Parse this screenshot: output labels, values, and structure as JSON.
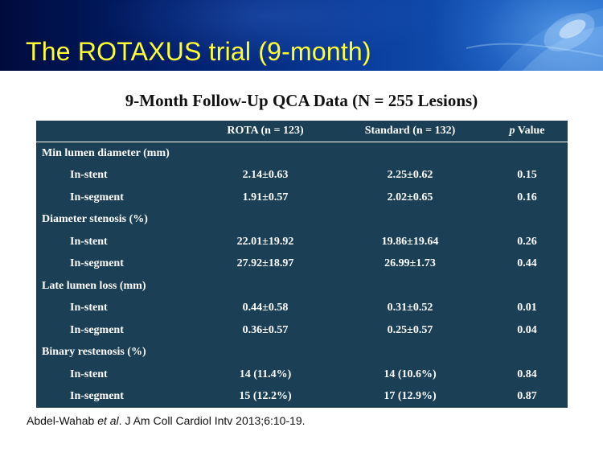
{
  "slide": {
    "title": "The ROTAXUS trial (9-month)",
    "table_title": "9-Month Follow-Up QCA Data (N = 255 Lesions)"
  },
  "table": {
    "headers": {
      "label": "",
      "rota": "ROTA (n = 123)",
      "standard": "Standard (n = 132)",
      "p_italic": "p",
      "p_rest": " Value"
    },
    "groups": [
      {
        "label": "Min lumen diameter (mm)",
        "rows": [
          {
            "label": "In-stent",
            "rota": "2.14±0.63",
            "standard": "2.25±0.62",
            "p": "0.15"
          },
          {
            "label": "In-segment",
            "rota": "1.91±0.57",
            "standard": "2.02±0.65",
            "p": "0.16"
          }
        ]
      },
      {
        "label": "Diameter stenosis (%)",
        "rows": [
          {
            "label": "In-stent",
            "rota": "22.01±19.92",
            "standard": "19.86±19.64",
            "p": "0.26"
          },
          {
            "label": "In-segment",
            "rota": "27.92±18.97",
            "standard": "26.99±1.73",
            "p": "0.44"
          }
        ]
      },
      {
        "label": "Late lumen loss (mm)",
        "rows": [
          {
            "label": "In-stent",
            "rota": "0.44±0.58",
            "standard": "0.31±0.52",
            "p": "0.01"
          },
          {
            "label": "In-segment",
            "rota": "0.36±0.57",
            "standard": "0.25±0.57",
            "p": "0.04"
          }
        ]
      },
      {
        "label": "Binary restenosis (%)",
        "rows": [
          {
            "label": "In-stent",
            "rota": "14 (11.4%)",
            "standard": "14 (10.6%)",
            "p": "0.84"
          },
          {
            "label": "In-segment",
            "rota": "15 (12.2%)",
            "standard": "17 (12.9%)",
            "p": "0.87"
          }
        ]
      }
    ]
  },
  "citation": {
    "authors": "Abdel-Wahab ",
    "etal": "et al",
    "rest": ". J Am Coll Cardiol Intv 2013;6:10-19."
  },
  "colors": {
    "banner_dark": "#000b3d",
    "banner_light": "#1f68c6",
    "title_yellow": "#ffff33",
    "table_bg": "#1b3f55",
    "table_text": "#ffffff"
  }
}
